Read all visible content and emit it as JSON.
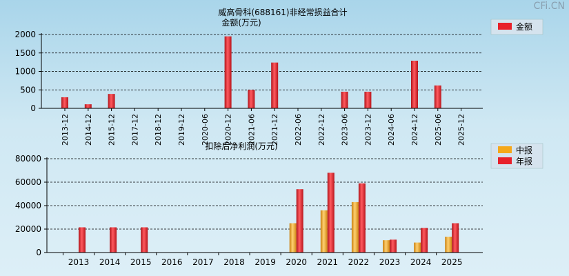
{
  "watermark": "CFi.CN",
  "colors": {
    "red": "#e8202a",
    "orange": "#f5a81a"
  },
  "chart_data": [
    {
      "type": "bar",
      "title": "威高骨科(688161)非经常损益合计",
      "subtitle": "金额(万元)",
      "legend": [
        "金额"
      ],
      "legend_position": "top-right",
      "ylim": [
        0,
        2000
      ],
      "yticks": [
        0,
        500,
        1000,
        1500,
        2000
      ],
      "grid": true,
      "categories": [
        "2013-12",
        "2014-12",
        "2015-12",
        "2017-12",
        "2018-12",
        "2019-12",
        "2020-06",
        "2020-12",
        "2021-06",
        "2021-12",
        "2022-06",
        "2022-12",
        "2023-06",
        "2023-12",
        "2024-06",
        "2024-12",
        "2025-06",
        "2025-12"
      ],
      "series": [
        {
          "name": "金额",
          "color": "red",
          "values": [
            300,
            110,
            390,
            0,
            0,
            0,
            0,
            1950,
            500,
            1240,
            0,
            0,
            450,
            450,
            0,
            1290,
            620,
            0
          ]
        }
      ]
    },
    {
      "type": "bar",
      "title": "扣除后净利润(万元)",
      "legend": [
        "中报",
        "年报"
      ],
      "legend_position": "top-right",
      "ylim": [
        0,
        80000
      ],
      "yticks": [
        0,
        20000,
        40000,
        60000,
        80000
      ],
      "grid": true,
      "categories": [
        "2013",
        "2014",
        "2015",
        "2016",
        "2017",
        "2018",
        "2019",
        "2020",
        "2021",
        "2022",
        "2023",
        "2024",
        "2025"
      ],
      "series": [
        {
          "name": "中报",
          "color": "orange",
          "values": [
            0,
            0,
            0,
            0,
            0,
            0,
            0,
            25000,
            36000,
            43000,
            10500,
            8500,
            13500
          ]
        },
        {
          "name": "年报",
          "color": "red",
          "values": [
            21500,
            21500,
            21500,
            0,
            0,
            0,
            0,
            54000,
            68000,
            59000,
            11000,
            21000,
            25000
          ]
        }
      ]
    }
  ]
}
